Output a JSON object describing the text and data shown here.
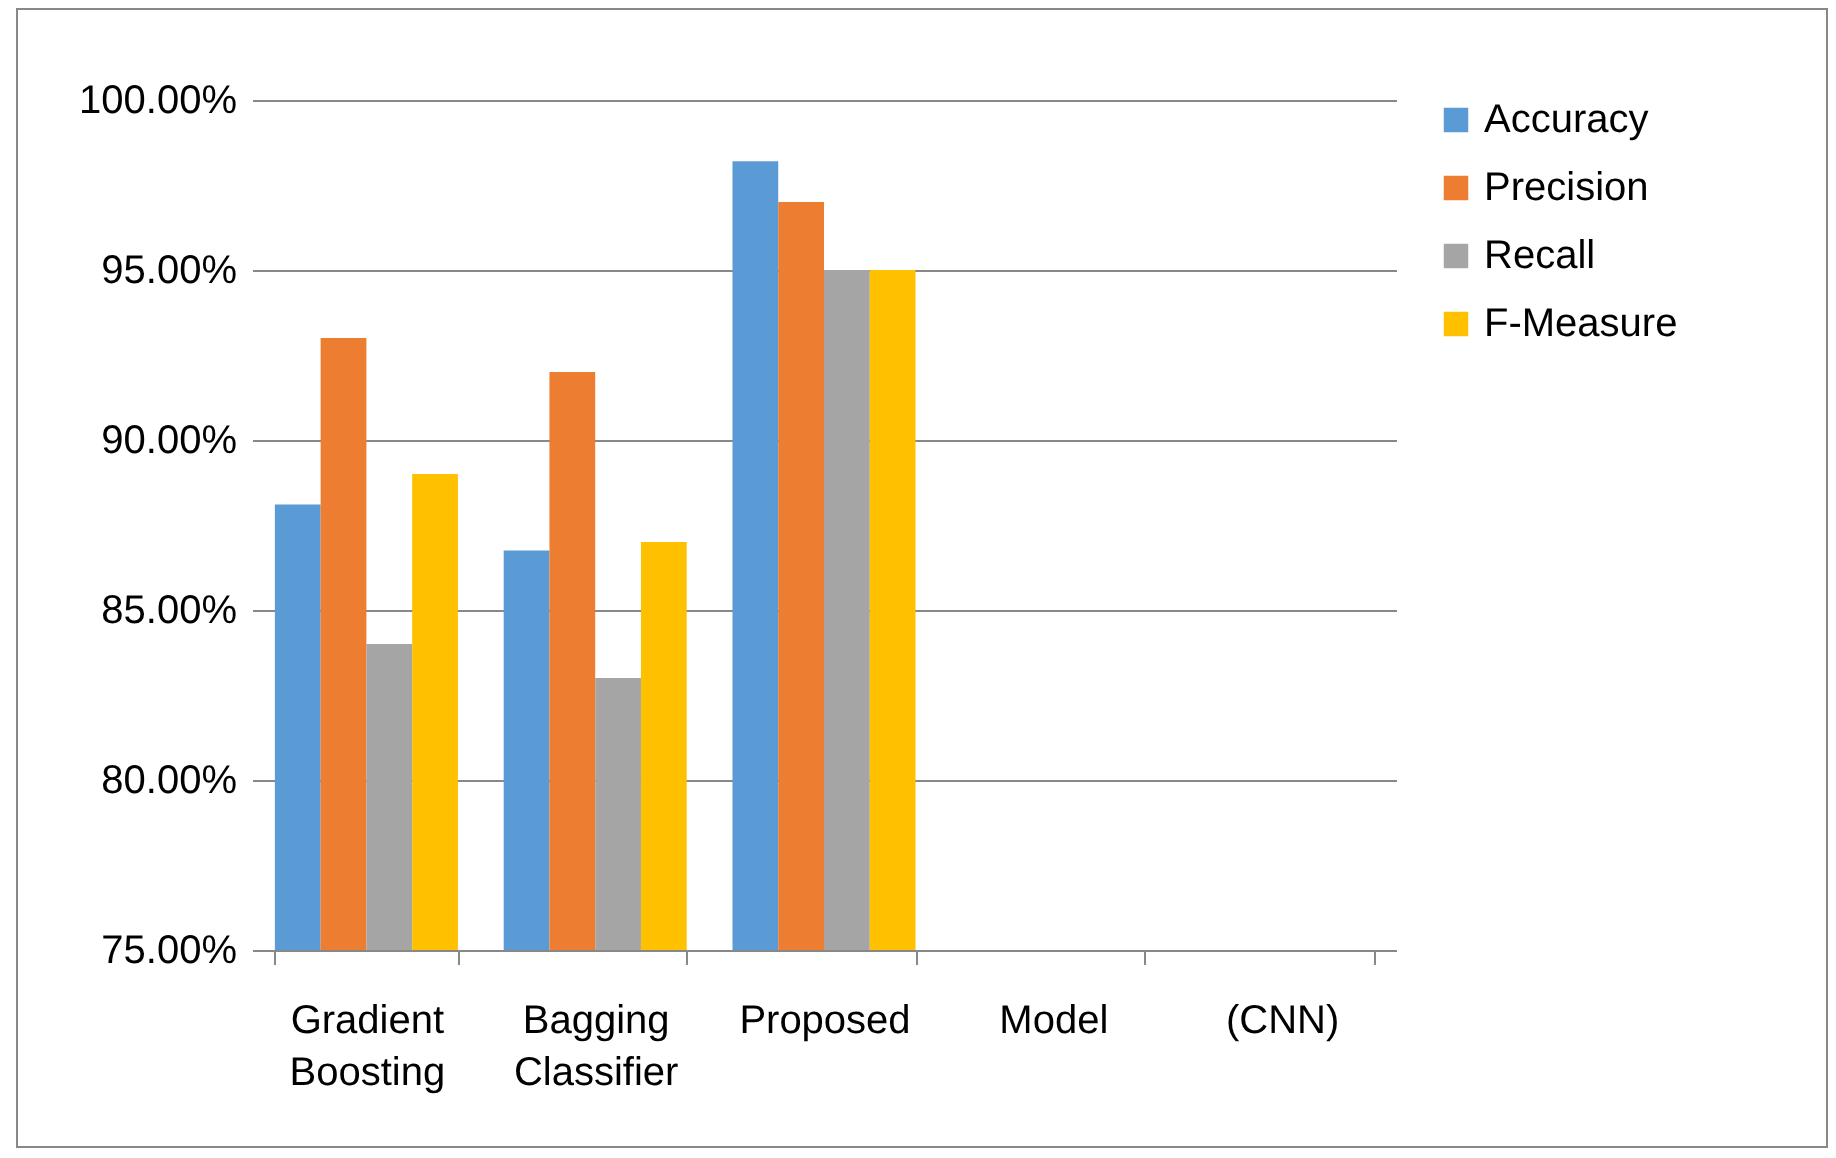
{
  "chart_data": {
    "type": "bar",
    "categories": [
      "Gradient Boosting",
      "Bagging Classifier",
      "Proposed",
      "Model",
      "(CNN)"
    ],
    "series": [
      {
        "name": "Accuracy",
        "color": "#5b9bd5",
        "values": [
          88.1,
          86.75,
          98.2,
          null,
          null
        ]
      },
      {
        "name": "Precision",
        "color": "#ed7d31",
        "values": [
          93,
          92,
          97,
          null,
          null
        ]
      },
      {
        "name": "Recall",
        "color": "#a5a5a5",
        "values": [
          84,
          83,
          95,
          null,
          null
        ]
      },
      {
        "name": "F-Measure",
        "color": "#ffc000",
        "values": [
          89,
          87,
          95,
          null,
          null
        ]
      }
    ],
    "ylim": [
      75,
      100
    ],
    "yticks": [
      {
        "value": 75,
        "label": "75.00%"
      },
      {
        "value": 80,
        "label": "80.00%"
      },
      {
        "value": 85,
        "label": "85.00%"
      },
      {
        "value": 90,
        "label": "90.00%"
      },
      {
        "value": 95,
        "label": "95.00%"
      },
      {
        "value": 100,
        "label": "100.00%"
      }
    ],
    "grid": "y",
    "legend": "right"
  }
}
